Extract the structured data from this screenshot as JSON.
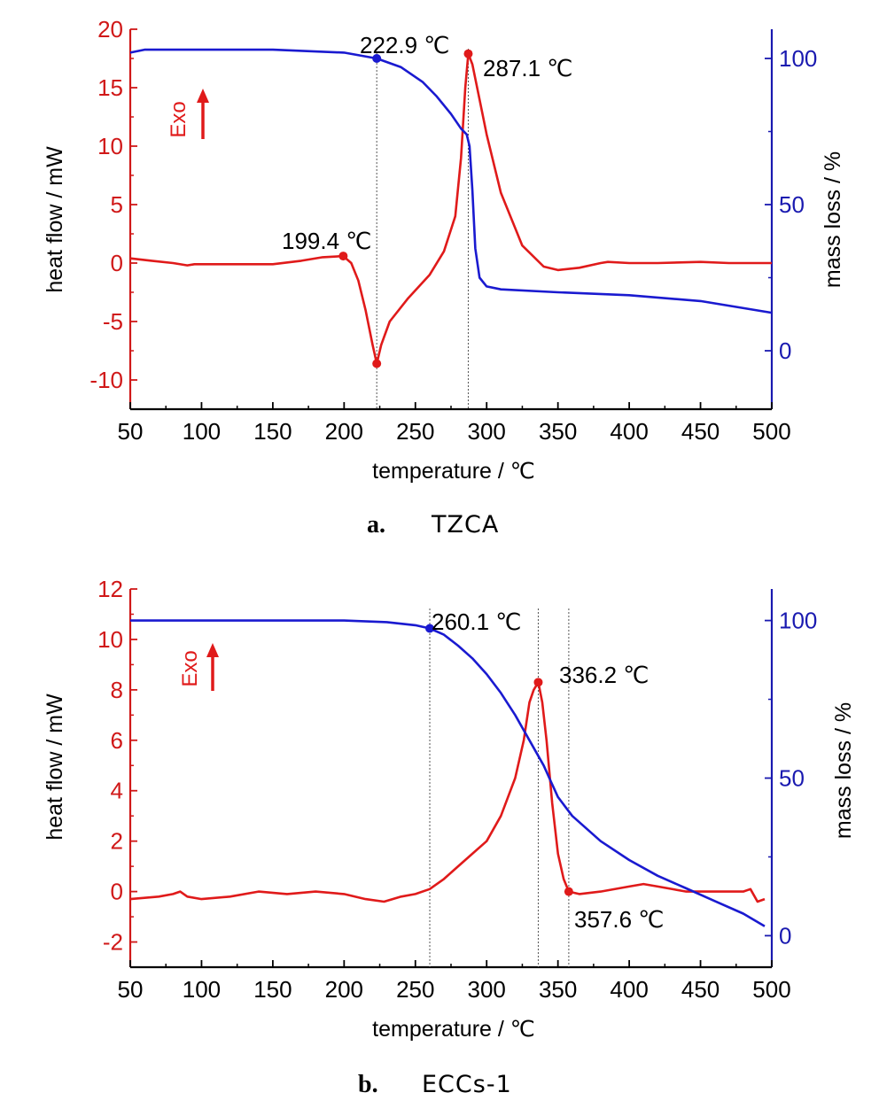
{
  "colors": {
    "heat": "#e01a1a",
    "mass": "#1a1ad0",
    "axis_left": "#d01818",
    "axis_right": "#1a1ab0"
  },
  "chart_data": [
    {
      "id": "a",
      "type": "line",
      "caption_letter": "a.",
      "caption_name": "TZCA",
      "xlabel": "temperature / ℃",
      "ylabel_left": "heat flow / mW",
      "ylabel_right": "mass loss / %",
      "exo_label": "Exo",
      "xlim": [
        50,
        500
      ],
      "xticks": [
        50,
        100,
        150,
        200,
        250,
        300,
        350,
        400,
        450,
        500
      ],
      "ylim_left": [
        -12.5,
        20
      ],
      "yticks_left": [
        20,
        15,
        10,
        5,
        0,
        -5,
        -10
      ],
      "ylim_right": [
        -20,
        110
      ],
      "yticks_right": [
        100,
        50,
        0
      ],
      "series": [
        {
          "axis": "left",
          "color": "heat",
          "x": [
            50,
            65,
            80,
            90,
            95,
            110,
            150,
            170,
            185,
            199.4,
            205,
            210,
            215,
            220,
            222.9,
            226,
            232,
            245,
            260,
            270,
            278,
            282,
            285,
            287.1,
            290,
            295,
            300,
            310,
            325,
            340,
            350,
            365,
            380,
            385,
            400,
            420,
            450,
            470,
            500
          ],
          "y": [
            0.4,
            0.2,
            0.0,
            -0.2,
            -0.1,
            -0.1,
            -0.1,
            0.2,
            0.5,
            0.6,
            0.0,
            -1.5,
            -4.0,
            -7.0,
            -8.6,
            -7.0,
            -5.0,
            -3.0,
            -1.0,
            1.0,
            4.0,
            9.0,
            15.0,
            17.9,
            17.0,
            14.0,
            11.0,
            6.0,
            1.5,
            -0.3,
            -0.6,
            -0.4,
            0.0,
            0.1,
            0.0,
            0.0,
            0.1,
            0.0,
            0.0
          ]
        },
        {
          "axis": "right",
          "color": "mass",
          "x": [
            50,
            60,
            100,
            150,
            200,
            222.9,
            240,
            255,
            265,
            275,
            282,
            286,
            288,
            290,
            292,
            295,
            300,
            310,
            350,
            400,
            450,
            500
          ],
          "y": [
            102,
            103,
            103,
            103,
            102,
            100,
            97,
            92,
            87,
            81,
            76,
            74,
            70,
            55,
            35,
            25,
            22,
            21,
            20,
            19,
            17,
            13
          ]
        }
      ],
      "markers": [
        {
          "x": 199.4,
          "y": 0.6,
          "axis": "left",
          "color": "heat",
          "label": "199.4 ℃"
        },
        {
          "x": 222.9,
          "y": 100,
          "axis": "right",
          "color": "mass",
          "label": "222.9 ℃"
        },
        {
          "x": 222.9,
          "y": -8.6,
          "axis": "left",
          "color": "heat",
          "label": ""
        },
        {
          "x": 287.1,
          "y": 17.9,
          "axis": "left",
          "color": "heat",
          "label": "287.1 ℃"
        }
      ],
      "vlines": [
        222.9,
        287.1
      ]
    },
    {
      "id": "b",
      "type": "line",
      "caption_letter": "b.",
      "caption_name": "ECCs-1",
      "xlabel": "temperature / ℃",
      "ylabel_left": "heat flow / mW",
      "ylabel_right": "mass loss / %",
      "exo_label": "Exo",
      "xlim": [
        50,
        500
      ],
      "xticks": [
        50,
        100,
        150,
        200,
        250,
        300,
        350,
        400,
        450,
        500
      ],
      "ylim_left": [
        -3,
        12
      ],
      "yticks_left": [
        12,
        10,
        8,
        6,
        4,
        2,
        0,
        -2
      ],
      "ylim_right": [
        -10,
        110
      ],
      "yticks_right": [
        100,
        50,
        0
      ],
      "series": [
        {
          "axis": "left",
          "color": "heat",
          "x": [
            50,
            70,
            80,
            85,
            90,
            100,
            120,
            140,
            160,
            180,
            200,
            215,
            228,
            240,
            250,
            260,
            270,
            280,
            290,
            300,
            310,
            320,
            326,
            330,
            333,
            336.2,
            339,
            342,
            346,
            350,
            354,
            357.6,
            365,
            380,
            400,
            410,
            420,
            440,
            460,
            480,
            485,
            490,
            495
          ],
          "y": [
            -0.3,
            -0.2,
            -0.1,
            0.0,
            -0.2,
            -0.3,
            -0.2,
            0.0,
            -0.1,
            0.0,
            -0.1,
            -0.3,
            -0.4,
            -0.2,
            -0.1,
            0.1,
            0.5,
            1.0,
            1.5,
            2.0,
            3.0,
            4.5,
            6.0,
            7.5,
            8.0,
            8.3,
            7.5,
            6.0,
            3.5,
            1.5,
            0.5,
            0.0,
            -0.1,
            0.0,
            0.2,
            0.3,
            0.2,
            0.0,
            0.0,
            0.0,
            0.1,
            -0.4,
            -0.3
          ]
        },
        {
          "axis": "right",
          "color": "mass",
          "x": [
            50,
            100,
            150,
            200,
            230,
            250,
            260.1,
            270,
            280,
            290,
            300,
            310,
            320,
            330,
            340,
            345,
            350,
            360,
            380,
            400,
            420,
            440,
            460,
            480,
            495
          ],
          "y": [
            100,
            100,
            100,
            100,
            99.5,
            98.5,
            97.5,
            95.5,
            92,
            88,
            83,
            77,
            70,
            62,
            54,
            49,
            44,
            38,
            30,
            24,
            19,
            15,
            11,
            7,
            3
          ]
        }
      ],
      "markers": [
        {
          "x": 260.1,
          "y": 97.5,
          "axis": "right",
          "color": "mass",
          "label": "260.1 ℃"
        },
        {
          "x": 336.2,
          "y": 8.3,
          "axis": "left",
          "color": "heat",
          "label": "336.2 ℃"
        },
        {
          "x": 357.6,
          "y": 0.0,
          "axis": "left",
          "color": "heat",
          "label": "357.6 ℃"
        }
      ],
      "vlines": [
        260.1,
        336.2,
        357.6
      ]
    }
  ]
}
